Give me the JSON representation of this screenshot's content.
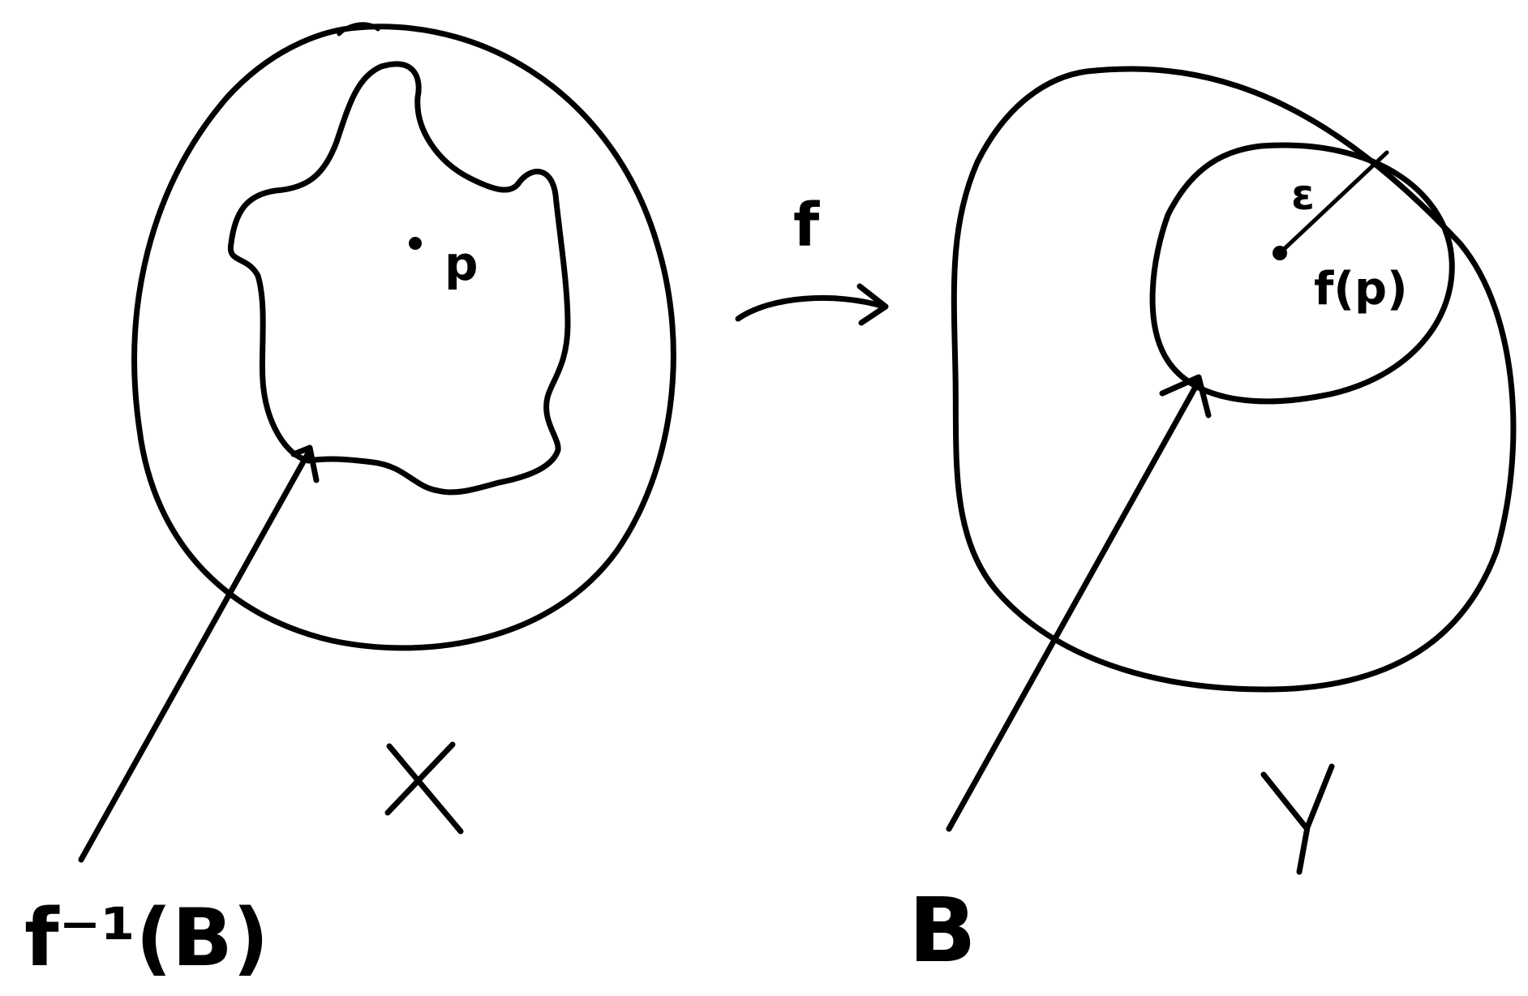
{
  "labels": {
    "domain_set": "X",
    "codomain_set": "Y",
    "map_name": "f",
    "point": "p",
    "image_point": "f(p)",
    "radius": "ε",
    "ball": "B",
    "preimage": "f⁻¹(B)"
  },
  "colors": {
    "ink": "#000000",
    "background": "#ffffff"
  }
}
